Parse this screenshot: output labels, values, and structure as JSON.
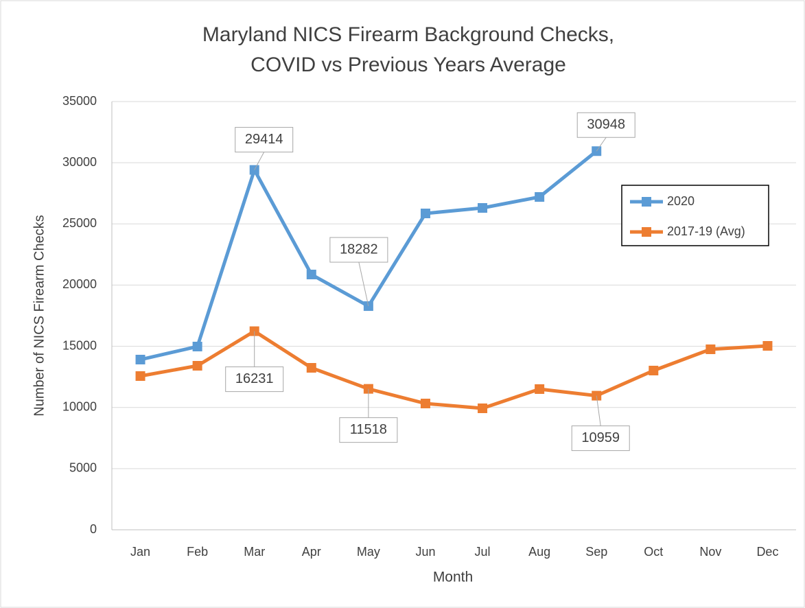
{
  "chart_data": {
    "type": "line",
    "title": [
      "Maryland NICS Firearm Background Checks,",
      "COVID vs Previous Years Average"
    ],
    "x_label": "Month",
    "y_label": "Number of NICS Firearm Checks",
    "categories": [
      "Jan",
      "Feb",
      "Mar",
      "Apr",
      "May",
      "Jun",
      "Jul",
      "Aug",
      "Sep",
      "Oct",
      "Nov",
      "Dec"
    ],
    "series": [
      {
        "name": "2020",
        "color": "#5b9bd5",
        "values": [
          13910,
          14976,
          29414,
          20865,
          18282,
          25857,
          26306,
          27203,
          30948,
          null,
          null,
          null
        ],
        "labeled_points": [
          2,
          4,
          8
        ]
      },
      {
        "name": "2017-19 (Avg)",
        "color": "#ed7d31",
        "values": [
          12564,
          13405,
          16231,
          13237,
          11518,
          10321,
          9928,
          11500,
          10959,
          13013,
          14752,
          15032
        ],
        "labeled_points": [
          2,
          4,
          8
        ]
      }
    ],
    "ylim": [
      0,
      35000
    ],
    "yticks": [
      0,
      5000,
      10000,
      15000,
      20000,
      25000,
      30000,
      35000
    ],
    "grid": true,
    "legend": "upper right"
  }
}
